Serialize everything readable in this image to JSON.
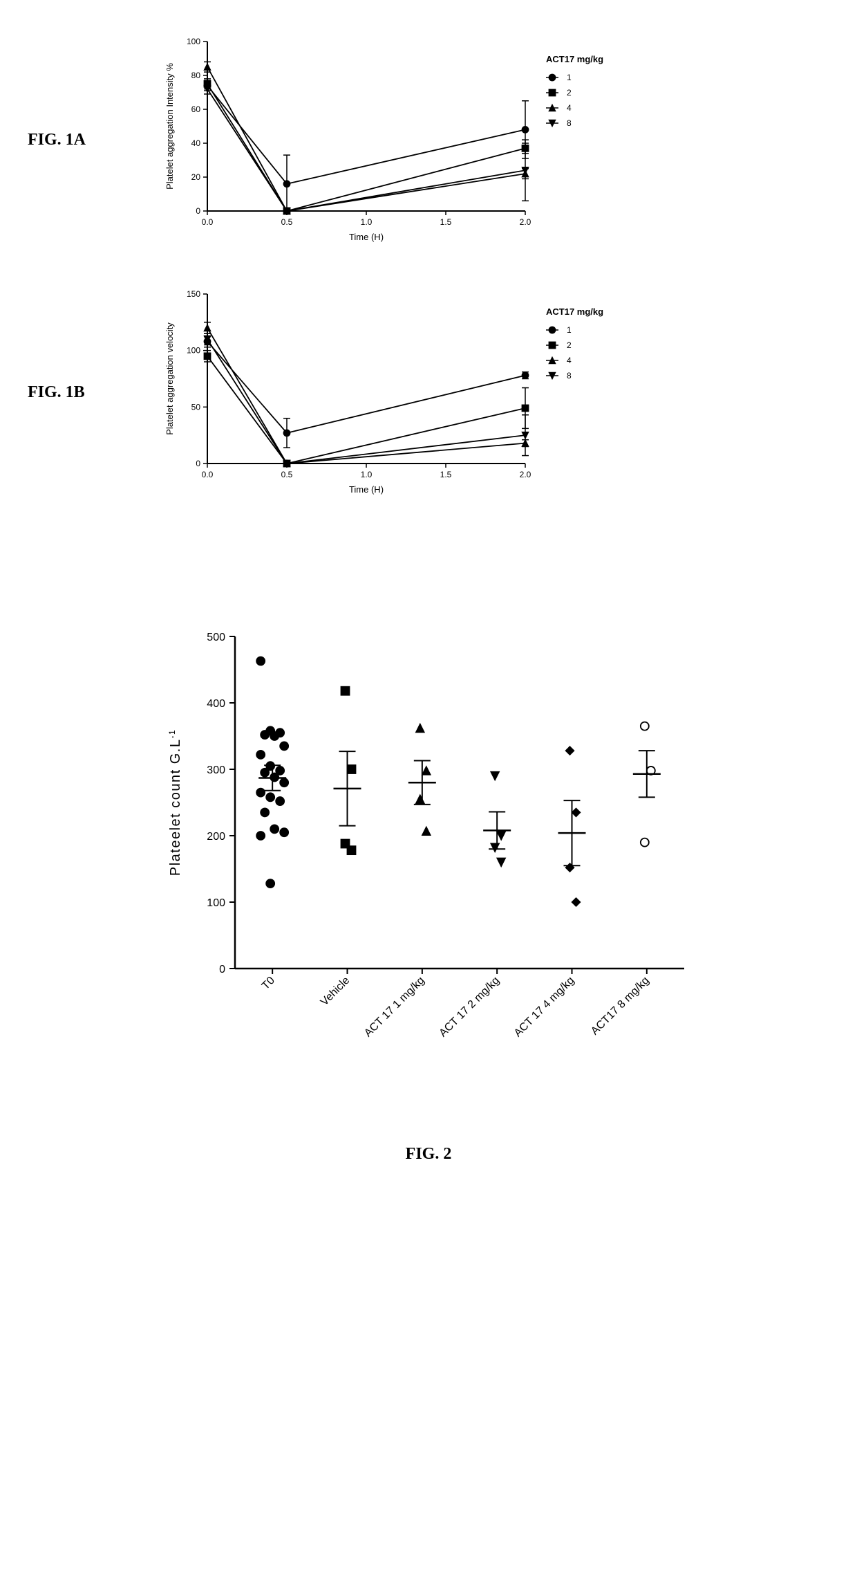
{
  "fig1a": {
    "label": "FIG. 1A",
    "type": "line",
    "ylabel": "Platelet aggregation Intensity %",
    "xlabel": "Time (H)",
    "legend_title": "ACT17 mg/kg",
    "xlim": [
      0.0,
      2.0
    ],
    "ylim": [
      0,
      100
    ],
    "xticks": [
      0.0,
      0.5,
      1.0,
      1.5,
      2.0
    ],
    "yticks": [
      0,
      20,
      40,
      60,
      80,
      100
    ],
    "label_fontsize": 13,
    "tick_fontsize": 12,
    "title_fontsize": 13,
    "line_color": "#000000",
    "background_color": "#ffffff",
    "series": [
      {
        "name": "1",
        "marker": "circle",
        "x": [
          0.0,
          0.5,
          2.0
        ],
        "y": [
          74,
          16,
          48
        ],
        "err": [
          3,
          17,
          17
        ]
      },
      {
        "name": "2",
        "marker": "square",
        "x": [
          0.0,
          0.5,
          2.0
        ],
        "y": [
          75,
          0,
          37
        ],
        "err": [
          3,
          0,
          3
        ]
      },
      {
        "name": "4",
        "marker": "triangle-up",
        "x": [
          0.0,
          0.5,
          2.0
        ],
        "y": [
          85,
          0,
          22
        ],
        "err": [
          3,
          0,
          3
        ]
      },
      {
        "name": "8",
        "marker": "triangle-down",
        "x": [
          0.0,
          0.5,
          2.0
        ],
        "y": [
          72,
          0,
          24
        ],
        "err": [
          3,
          0,
          18
        ]
      }
    ]
  },
  "fig1b": {
    "label": "FIG. 1B",
    "type": "line",
    "ylabel": "Platelet aggregation  velocity",
    "xlabel": "Time (H)",
    "legend_title": "ACT17 mg/kg",
    "xlim": [
      0.0,
      2.0
    ],
    "ylim": [
      0,
      150
    ],
    "xticks": [
      0.0,
      0.5,
      1.0,
      1.5,
      2.0
    ],
    "yticks": [
      0,
      50,
      100,
      150
    ],
    "label_fontsize": 13,
    "tick_fontsize": 12,
    "title_fontsize": 13,
    "line_color": "#000000",
    "background_color": "#ffffff",
    "series": [
      {
        "name": "1",
        "marker": "circle",
        "x": [
          0.0,
          0.5,
          2.0
        ],
        "y": [
          108,
          27,
          78
        ],
        "err": [
          5,
          13,
          3
        ]
      },
      {
        "name": "2",
        "marker": "square",
        "x": [
          0.0,
          0.5,
          2.0
        ],
        "y": [
          95,
          0,
          49
        ],
        "err": [
          5,
          0,
          18
        ]
      },
      {
        "name": "4",
        "marker": "triangle-up",
        "x": [
          0.0,
          0.5,
          2.0
        ],
        "y": [
          120,
          0,
          18
        ],
        "err": [
          5,
          0,
          3
        ]
      },
      {
        "name": "8",
        "marker": "triangle-down",
        "x": [
          0.0,
          0.5,
          2.0
        ],
        "y": [
          110,
          0,
          25
        ],
        "err": [
          5,
          0,
          18
        ]
      }
    ]
  },
  "fig2": {
    "caption": "FIG. 2",
    "type": "scatter",
    "ylabel": "Plateelet count G.L-1",
    "ylim": [
      0,
      500
    ],
    "yticks": [
      0,
      100,
      200,
      300,
      400,
      500
    ],
    "categories": [
      "T0",
      "Vehicle",
      "ACT 17 1 mg/kg",
      "ACT 17 2 mg/kg",
      "ACT 17 4 mg/kg",
      "ACT17 8 mg/kg"
    ],
    "label_fontsize": 20,
    "tick_fontsize": 16,
    "line_color": "#000000",
    "background_color": "#ffffff",
    "groups": [
      {
        "marker": "circle",
        "filled": true,
        "points": [
          463,
          358,
          355,
          352,
          350,
          335,
          322,
          305,
          298,
          295,
          288,
          280,
          265,
          258,
          252,
          235,
          210,
          205,
          200,
          128
        ],
        "mean": 287,
        "err": 19
      },
      {
        "marker": "square",
        "filled": true,
        "points": [
          418,
          300,
          188,
          178
        ],
        "mean": 271,
        "err": 56
      },
      {
        "marker": "triangle-up",
        "filled": true,
        "points": [
          362,
          298,
          255,
          207
        ],
        "mean": 280,
        "err": 33
      },
      {
        "marker": "triangle-down",
        "filled": true,
        "points": [
          290,
          200,
          182,
          160
        ],
        "mean": 208,
        "err": 28
      },
      {
        "marker": "diamond",
        "filled": true,
        "points": [
          328,
          235,
          152,
          100
        ],
        "mean": 204,
        "err": 49
      },
      {
        "marker": "circle",
        "filled": false,
        "points": [
          365,
          298,
          190
        ],
        "mean": 293,
        "err": 35
      }
    ]
  }
}
